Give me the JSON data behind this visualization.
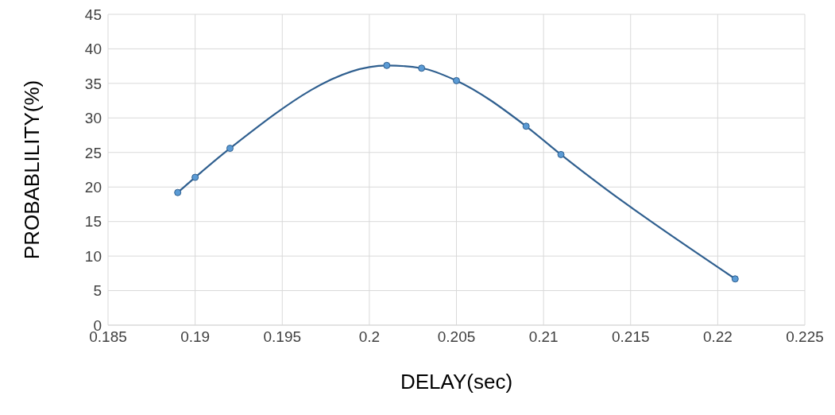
{
  "chart_data": {
    "type": "line",
    "xlabel": "DELAY(sec)",
    "ylabel": "PROBABLILITY(%)",
    "x": [
      0.189,
      0.19,
      0.192,
      0.201,
      0.203,
      0.205,
      0.209,
      0.211,
      0.221
    ],
    "series": [
      {
        "color": "#2f5f8f",
        "values": [
          19.2,
          21.4,
          25.6,
          37.6,
          37.2,
          35.4,
          28.8,
          24.7,
          6.7
        ]
      }
    ],
    "xlim": [
      0.185,
      0.225
    ],
    "xticks": [
      0.185,
      0.19,
      0.195,
      0.2,
      0.205,
      0.21,
      0.215,
      0.22,
      0.225
    ],
    "ylim": [
      0,
      45
    ],
    "yticks": [
      0,
      5,
      10,
      15,
      20,
      25,
      30,
      35,
      40,
      45
    ],
    "grid": true,
    "marker": "circle",
    "line_style": "solid"
  }
}
